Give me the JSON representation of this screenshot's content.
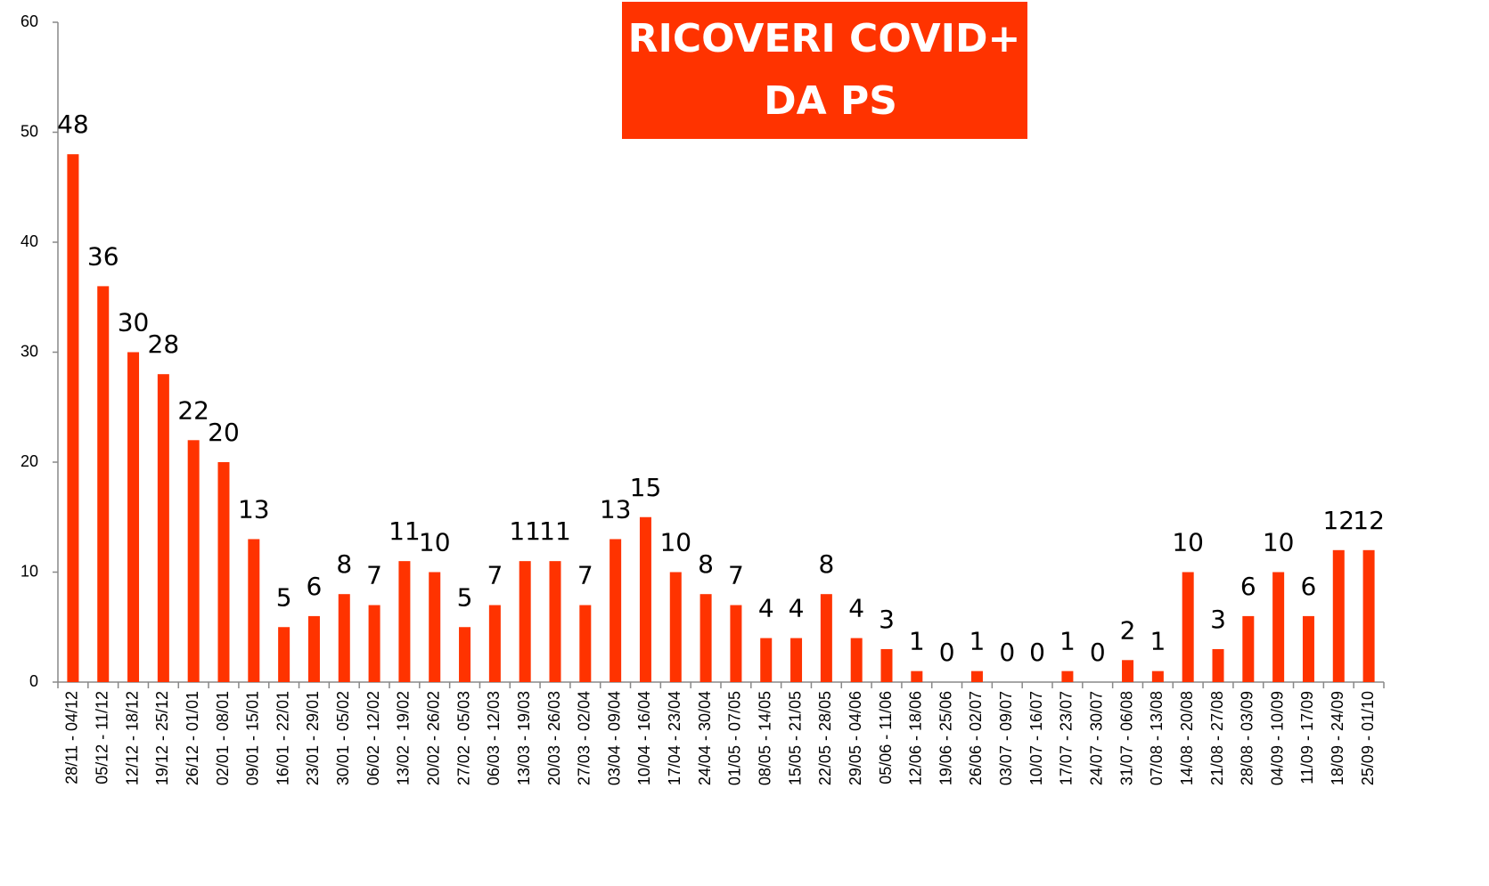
{
  "chart_data": {
    "type": "bar",
    "title": [
      "RICOVERI COVID+",
      "DA PS"
    ],
    "categories": [
      "28/11 - 04/12",
      "05/12 - 11/12",
      "12/12 - 18/12",
      "19/12 - 25/12",
      "26/12 - 01/01",
      "02/01 - 08/01",
      "09/01 - 15/01",
      "16/01 - 22/01",
      "23/01 - 29/01",
      "30/01 - 05/02",
      "06/02 - 12/02",
      "13/02 - 19/02",
      "20/02 - 26/02",
      "27/02 - 05/03",
      "06/03 - 12/03",
      "13/03 - 19/03",
      "20/03 - 26/03",
      "27/03 - 02/04",
      "03/04 - 09/04",
      "10/04 - 16/04",
      "17/04 - 23/04",
      "24/04 - 30/04",
      "01/05 - 07/05",
      "08/05 - 14/05",
      "15/05 - 21/05",
      "22/05 - 28/05",
      "29/05 - 04/06",
      "05/06 - 11/06",
      "12/06 - 18/06",
      "19/06 - 25/06",
      "26/06 - 02/07",
      "03/07 - 09/07",
      "10/07 - 16/07",
      "17/07 - 23/07",
      "24/07 - 30/07",
      "31/07 - 06/08",
      "07/08 - 13/08",
      "14/08 - 20/08",
      "21/08 - 27/08",
      "28/08 - 03/09",
      "04/09 - 10/09",
      "11/09 - 17/09",
      "18/09 - 24/09",
      "25/09 - 01/10"
    ],
    "values": [
      48,
      36,
      30,
      28,
      22,
      20,
      13,
      5,
      6,
      8,
      7,
      11,
      10,
      5,
      7,
      11,
      11,
      7,
      13,
      15,
      10,
      8,
      7,
      4,
      4,
      8,
      4,
      3,
      1,
      0,
      1,
      0,
      0,
      1,
      0,
      2,
      1,
      10,
      3,
      6,
      10,
      6,
      12,
      12
    ],
    "color": "#ff3300",
    "ylim": [
      0,
      60
    ],
    "yticks": [
      0,
      10,
      20,
      30,
      40,
      50,
      60
    ],
    "grid": false
  }
}
